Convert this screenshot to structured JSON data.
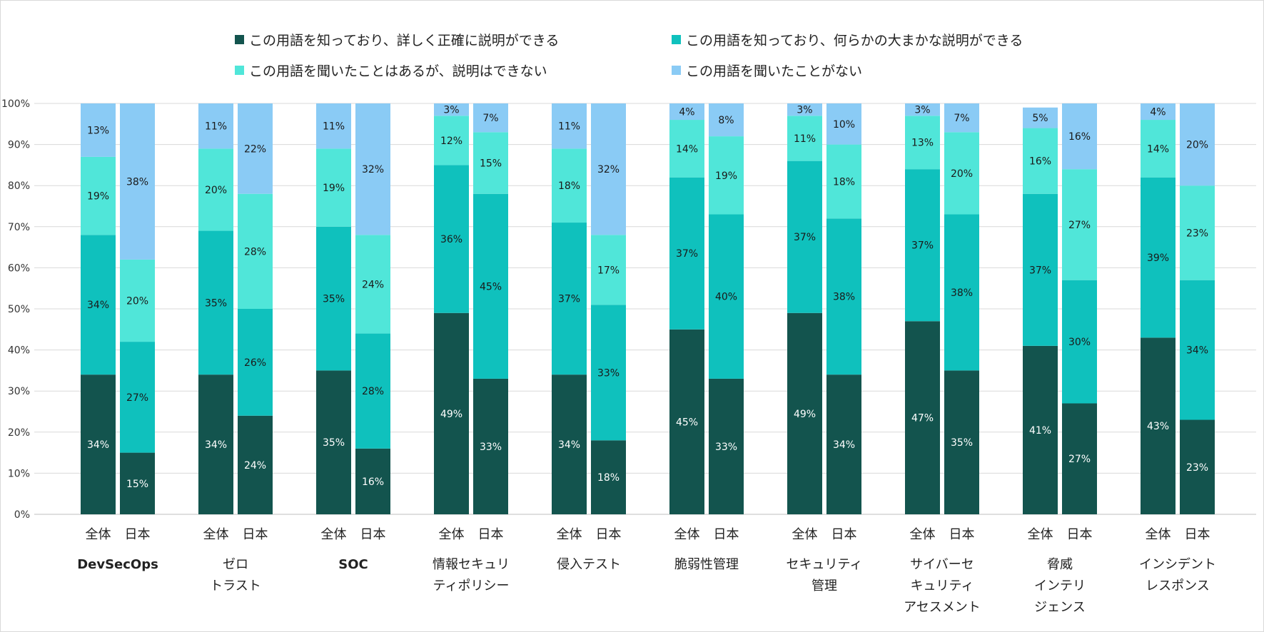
{
  "chart_data": {
    "type": "bar",
    "stacked": true,
    "percent_axis": true,
    "ylim": [
      0,
      100
    ],
    "y_ticks": [
      "0%",
      "10%",
      "20%",
      "30%",
      "40%",
      "50%",
      "60%",
      "70%",
      "80%",
      "90%",
      "100%"
    ],
    "grid": true,
    "legend_position": "top",
    "group_labels": [
      [
        "DevSecOps"
      ],
      [
        "ゼロ",
        "トラスト"
      ],
      [
        "SOC"
      ],
      [
        "情報セキュリ",
        "ティポリシー"
      ],
      [
        "侵入テスト"
      ],
      [
        "脆弱性管理"
      ],
      [
        "セキュリティ",
        "管理"
      ],
      [
        "サイバーセ",
        "キュリティ",
        "アセスメント"
      ],
      [
        "脅威",
        "インテリ",
        "ジェンス"
      ],
      [
        "インシデント",
        "レスポンス"
      ]
    ],
    "bar_labels": [
      "全体",
      "日本"
    ],
    "series": [
      {
        "name": "この用語を知っており、詳しく正確に説明ができる",
        "color": "#13544e",
        "label_color": "#ffffff",
        "values": [
          [
            34,
            15
          ],
          [
            34,
            24
          ],
          [
            35,
            16
          ],
          [
            49,
            33
          ],
          [
            34,
            18
          ],
          [
            45,
            33
          ],
          [
            49,
            34
          ],
          [
            47,
            35
          ],
          [
            41,
            27
          ],
          [
            43,
            23
          ]
        ]
      },
      {
        "name": "この用語を知っており、何らかの大まかな説明ができる",
        "color": "#0fc1bd",
        "label_color": "#1a1a1a",
        "values": [
          [
            34,
            27
          ],
          [
            35,
            26
          ],
          [
            35,
            28
          ],
          [
            36,
            45
          ],
          [
            37,
            33
          ],
          [
            37,
            40
          ],
          [
            37,
            38
          ],
          [
            37,
            38
          ],
          [
            37,
            30
          ],
          [
            39,
            34
          ]
        ]
      },
      {
        "name": "この用語を聞いたことはあるが、説明はできない",
        "color": "#50e6d9",
        "label_color": "#1a1a1a",
        "values": [
          [
            19,
            20
          ],
          [
            20,
            28
          ],
          [
            19,
            24
          ],
          [
            12,
            15
          ],
          [
            18,
            17
          ],
          [
            14,
            19
          ],
          [
            11,
            18
          ],
          [
            13,
            20
          ],
          [
            16,
            27
          ],
          [
            14,
            23
          ]
        ]
      },
      {
        "name": "この用語を聞いたことがない",
        "color": "#8acbf5",
        "label_color": "#1a1a1a",
        "values": [
          [
            13,
            38
          ],
          [
            11,
            22
          ],
          [
            11,
            32
          ],
          [
            3,
            7
          ],
          [
            11,
            32
          ],
          [
            4,
            8
          ],
          [
            3,
            10
          ],
          [
            3,
            7
          ],
          [
            5,
            16
          ],
          [
            4,
            20
          ]
        ]
      }
    ]
  }
}
